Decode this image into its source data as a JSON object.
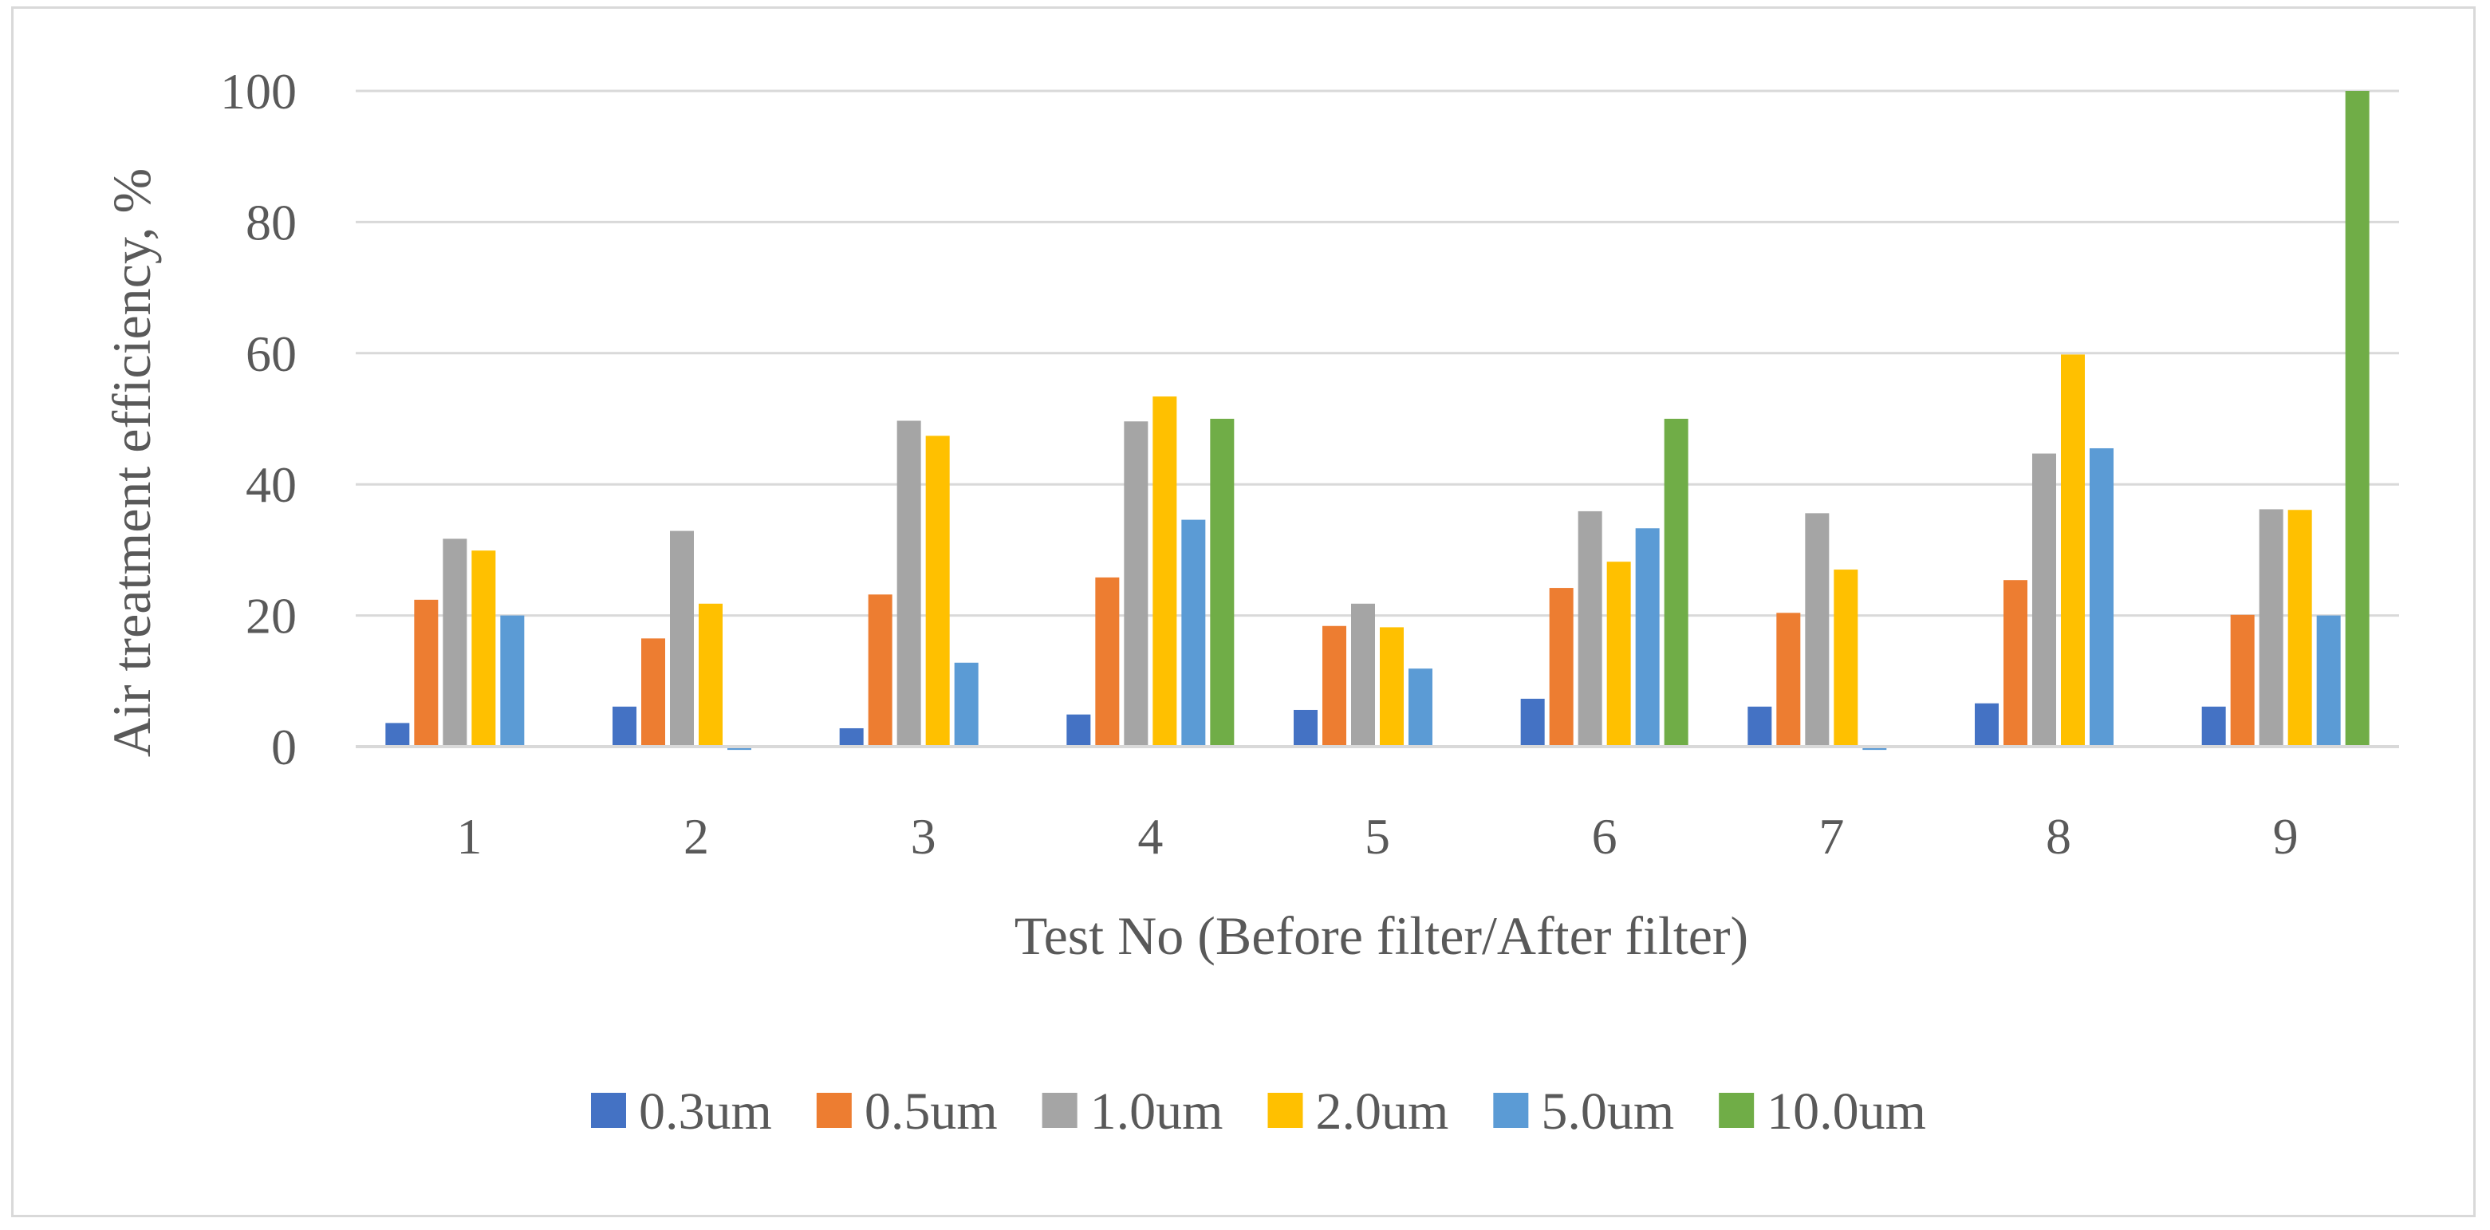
{
  "chart_data": {
    "type": "bar",
    "title": "",
    "xlabel": "Test No (Before filter/After filter)",
    "ylabel": "Air treatment efficiency, %",
    "ylim": [
      0,
      100
    ],
    "yticks": [
      0,
      20,
      40,
      60,
      80,
      100
    ],
    "grid": true,
    "legend_position": "bottom",
    "categories": [
      "1",
      "2",
      "3",
      "4",
      "5",
      "6",
      "7",
      "8",
      "9"
    ],
    "series": [
      {
        "name": "0.3um",
        "color": "#4472c4",
        "values": [
          3.6,
          6.1,
          2.8,
          4.9,
          5.6,
          7.3,
          6.1,
          6.6,
          6.1
        ]
      },
      {
        "name": "0.5um",
        "color": "#ed7d31",
        "values": [
          22.4,
          16.5,
          23.2,
          25.8,
          18.4,
          24.2,
          20.4,
          25.4,
          20.1
        ]
      },
      {
        "name": "1.0um",
        "color": "#a5a5a5",
        "values": [
          31.7,
          32.9,
          49.7,
          49.6,
          21.8,
          35.9,
          35.6,
          44.7,
          36.2
        ]
      },
      {
        "name": "2.0um",
        "color": "#ffc000",
        "values": [
          29.9,
          21.8,
          47.4,
          53.4,
          18.2,
          28.2,
          27.0,
          59.8,
          36.1
        ]
      },
      {
        "name": "5.0um",
        "color": "#5b9bd5",
        "values": [
          20.0,
          -0.5,
          12.8,
          34.6,
          11.9,
          33.3,
          -0.5,
          45.5,
          20.0
        ]
      },
      {
        "name": "10.0um",
        "color": "#70ad47",
        "values": [
          0,
          0,
          0,
          50.0,
          0,
          50.0,
          0,
          0,
          100.0
        ]
      }
    ]
  }
}
